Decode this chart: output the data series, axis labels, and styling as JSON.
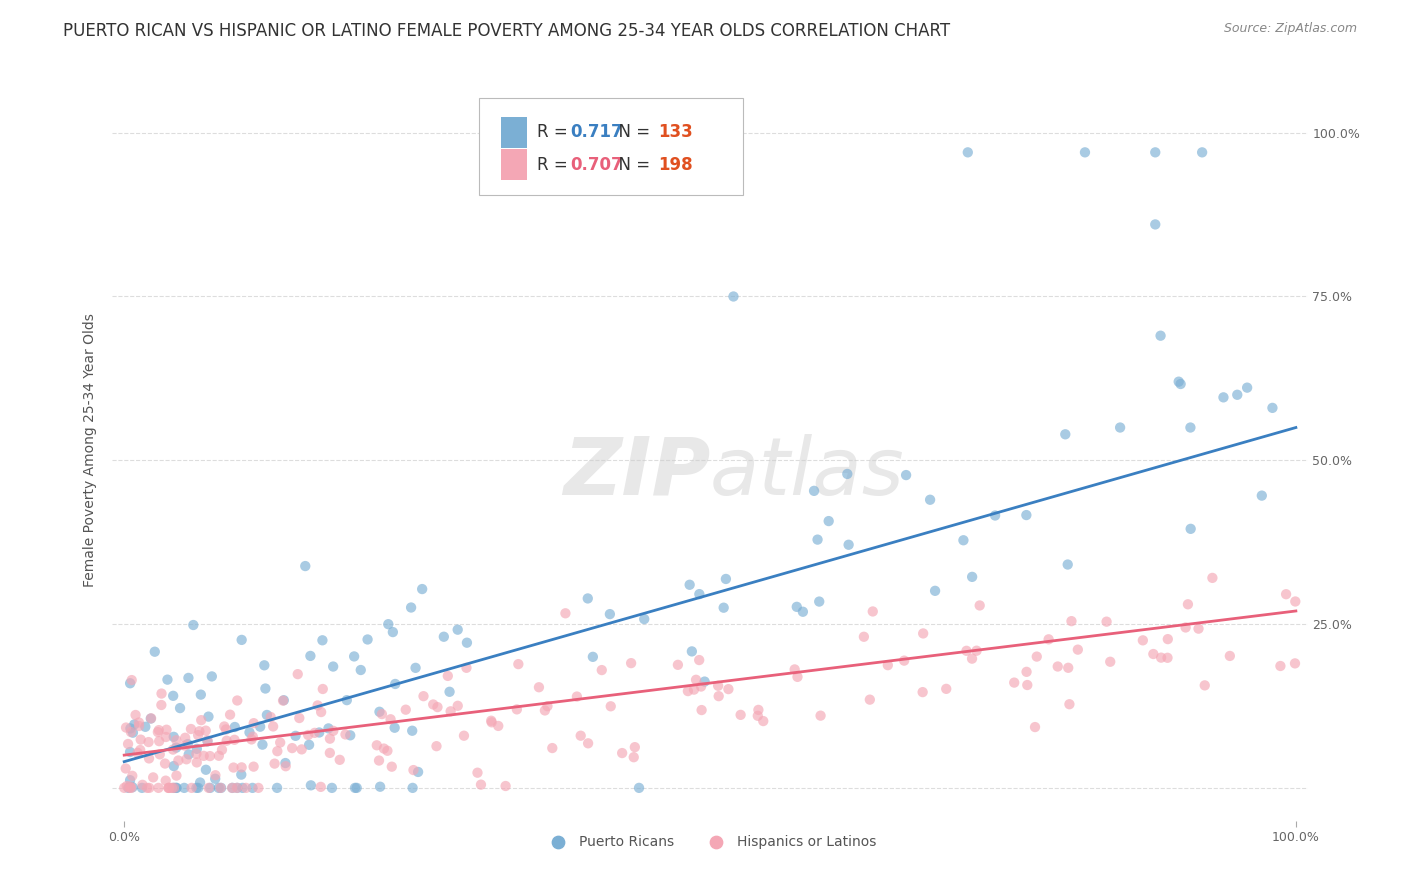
{
  "title": "PUERTO RICAN VS HISPANIC OR LATINO FEMALE POVERTY AMONG 25-34 YEAR OLDS CORRELATION CHART",
  "source": "Source: ZipAtlas.com",
  "ylabel": "Female Poverty Among 25-34 Year Olds",
  "xlim": [
    0,
    1
  ],
  "ylim": [
    -0.02,
    1.05
  ],
  "yticks_right": [
    0.0,
    0.25,
    0.5,
    0.75,
    1.0
  ],
  "ytick_labels_right": [
    "",
    "25.0%",
    "50.0%",
    "75.0%",
    "100.0%"
  ],
  "series1_color": "#7BAFD4",
  "series2_color": "#F4A7B5",
  "series1_label": "Puerto Ricans",
  "series2_label": "Hispanics or Latinos",
  "series1_R": "0.717",
  "series1_N": "133",
  "series2_R": "0.707",
  "series2_N": "198",
  "line1_color": "#3A7FC1",
  "line2_color": "#E8607A",
  "background_color": "#FFFFFF",
  "watermark": "ZIPatlas",
  "grid_color": "#DDDDDD",
  "title_fontsize": 12,
  "axis_label_fontsize": 10,
  "tick_fontsize": 9,
  "legend_fontsize": 12,
  "legend_R_color1": "#3A7FC1",
  "legend_N_color1": "#E05020",
  "legend_R_color2": "#E8607A",
  "legend_N_color2": "#E05020"
}
